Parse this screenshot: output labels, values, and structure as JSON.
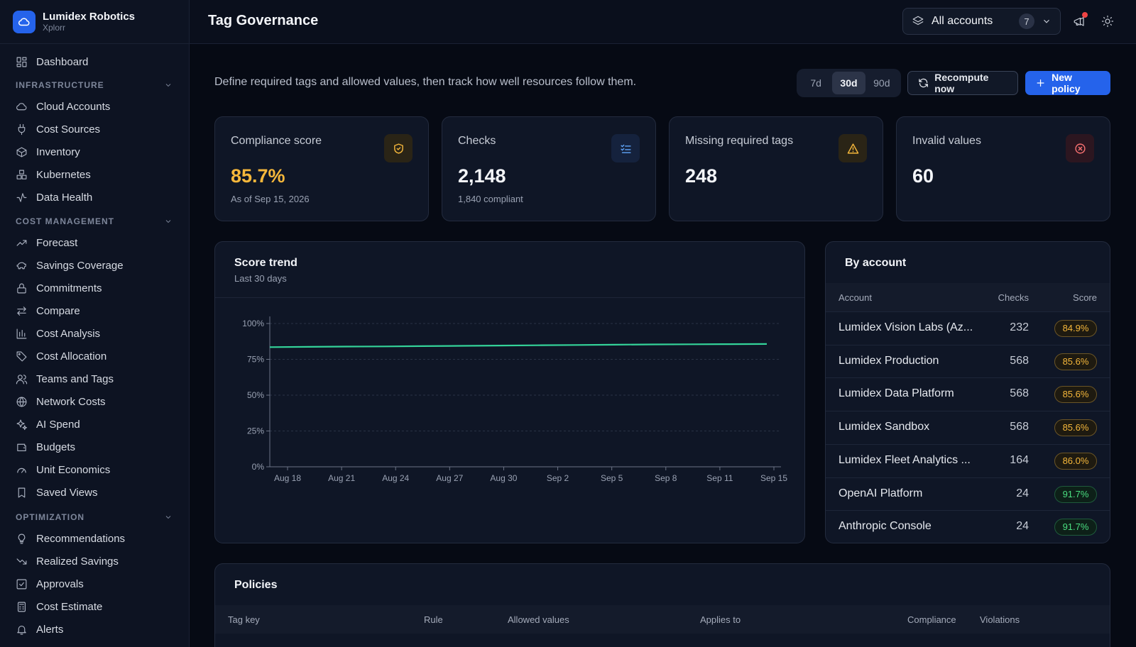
{
  "app": {
    "org_name": "Lumidex Robotics",
    "org_sub": "Xplorr"
  },
  "header": {
    "title": "Tag Governance",
    "account_select": "All accounts",
    "account_count": "7"
  },
  "sidebar": {
    "dashboard": "Dashboard",
    "sections": [
      {
        "label": "INFRASTRUCTURE",
        "items": [
          "Cloud Accounts",
          "Cost Sources",
          "Inventory",
          "Kubernetes",
          "Data Health"
        ]
      },
      {
        "label": "COST MANAGEMENT",
        "items": [
          "Forecast",
          "Savings Coverage",
          "Commitments",
          "Compare",
          "Cost Analysis",
          "Cost Allocation",
          "Teams and Tags",
          "Network Costs",
          "AI Spend",
          "Budgets",
          "Unit Economics",
          "Saved Views"
        ]
      },
      {
        "label": "OPTIMIZATION",
        "items": [
          "Recommendations",
          "Realized Savings",
          "Approvals",
          "Cost Estimate",
          "Alerts"
        ]
      }
    ]
  },
  "main": {
    "description": "Define required tags and allowed values, then track how well resources follow them.",
    "ranges": [
      "7d",
      "30d",
      "90d"
    ],
    "active_range": "30d",
    "recompute_label": "Recompute now",
    "new_policy_label": "New policy"
  },
  "stats": [
    {
      "label": "Compliance score",
      "value": "85.7%",
      "sub": "As of Sep 15, 2026",
      "icon": "shield-check-icon",
      "value_color": "#f5b73b"
    },
    {
      "label": "Checks",
      "value": "2,148",
      "sub": "1,840 compliant",
      "icon": "list-checks-icon",
      "value_color": "#f3f5f9"
    },
    {
      "label": "Missing required tags",
      "value": "248",
      "sub": "",
      "icon": "warning-icon",
      "value_color": "#f3f5f9"
    },
    {
      "label": "Invalid values",
      "value": "60",
      "sub": "",
      "icon": "x-circle-icon",
      "value_color": "#f3f5f9"
    }
  ],
  "trend": {
    "title": "Score trend",
    "subtitle": "Last 30 days"
  },
  "chart_data": {
    "type": "line",
    "title": "Score trend",
    "subtitle": "Last 30 days",
    "x_ticks": [
      "Aug 18",
      "Aug 21",
      "Aug 24",
      "Aug 27",
      "Aug 30",
      "Sep 2",
      "Sep 5",
      "Sep 8",
      "Sep 11",
      "Sep 15"
    ],
    "y_ticks": [
      "100%",
      "75%",
      "50%",
      "25%",
      "0%"
    ],
    "ylim": [
      0,
      100
    ],
    "grid": true,
    "series": [
      {
        "values": [
          83.5,
          83.7,
          83.9,
          84.0,
          84.2,
          84.4,
          84.6,
          84.8,
          85.0,
          85.2,
          85.4,
          85.5,
          85.6,
          85.7
        ],
        "color": "#34d399"
      }
    ]
  },
  "by_account": {
    "title": "By account",
    "columns": [
      "Account",
      "Checks",
      "Score"
    ],
    "rows": [
      {
        "account": "Lumidex Vision Labs (Az...",
        "checks": "232",
        "score": "84.9%",
        "tone": "amber"
      },
      {
        "account": "Lumidex Production",
        "checks": "568",
        "score": "85.6%",
        "tone": "amber"
      },
      {
        "account": "Lumidex Data Platform",
        "checks": "568",
        "score": "85.6%",
        "tone": "amber"
      },
      {
        "account": "Lumidex Sandbox",
        "checks": "568",
        "score": "85.6%",
        "tone": "amber"
      },
      {
        "account": "Lumidex Fleet Analytics ...",
        "checks": "164",
        "score": "86.0%",
        "tone": "amber"
      },
      {
        "account": "OpenAI Platform",
        "checks": "24",
        "score": "91.7%",
        "tone": "green"
      },
      {
        "account": "Anthropic Console",
        "checks": "24",
        "score": "91.7%",
        "tone": "green"
      }
    ]
  },
  "policies": {
    "title": "Policies",
    "columns": [
      "Tag key",
      "Rule",
      "Allowed values",
      "Applies to",
      "Compliance",
      "Violations"
    ]
  },
  "colors": {
    "accent": "#2563eb",
    "amber": "#f5b73b",
    "green": "#34d399"
  }
}
